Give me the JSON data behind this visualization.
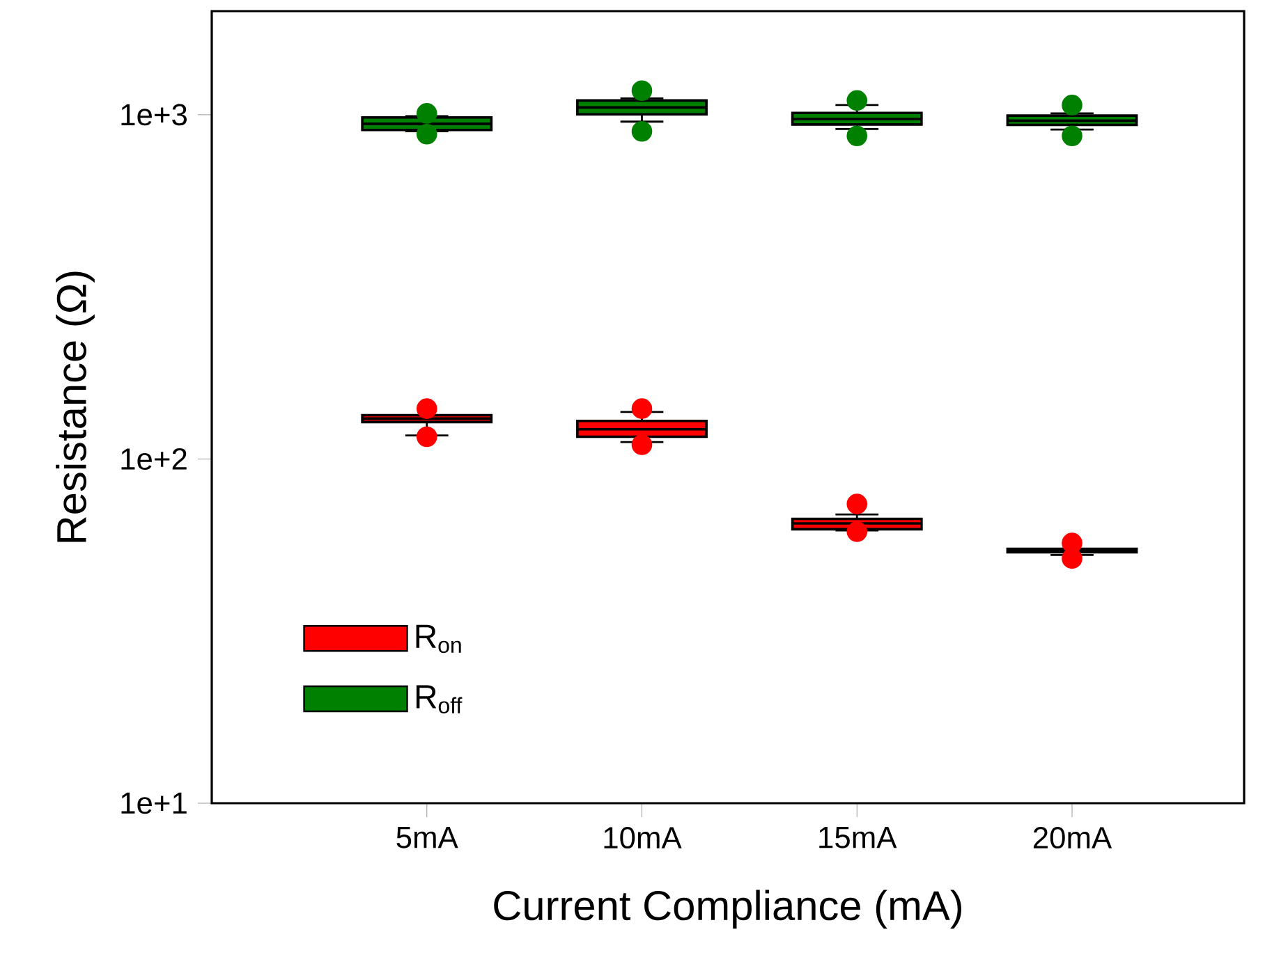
{
  "chart_data": {
    "type": "box",
    "xlabel": "Current Compliance (mA)",
    "ylabel": "Resistance (Ω)",
    "categories": [
      "5mA",
      "10mA",
      "15mA",
      "20mA"
    ],
    "log": true,
    "ylim": [
      10,
      2000
    ],
    "yticks": [
      {
        "value": 10,
        "label": "1e+1"
      },
      {
        "value": 100,
        "label": "1e+2"
      },
      {
        "value": 1000,
        "label": "1e+3"
      }
    ],
    "legend": "bottom left",
    "series": [
      {
        "name": "R$_{on}$",
        "color": "#ff0000",
        "boxes": [
          {
            "low": 117,
            "q1": 128,
            "median": 131,
            "q3": 134,
            "high": 134,
            "outliers": [
              116,
              140
            ]
          },
          {
            "low": 112,
            "q1": 116,
            "median": 122,
            "q3": 129,
            "high": 137,
            "outliers": [
              110,
              140
            ]
          },
          {
            "low": 62,
            "q1": 62.5,
            "median": 65,
            "q3": 67,
            "high": 69,
            "outliers": [
              61.5,
              74
            ]
          },
          {
            "low": 52.6,
            "q1": 53.6,
            "median": 54.2,
            "q3": 54.8,
            "high": 54.8,
            "outliers": [
              51.4,
              57
            ]
          }
        ]
      },
      {
        "name": "R$_{off}$",
        "color": "#008000",
        "boxes": [
          {
            "low": 895,
            "q1": 903,
            "median": 941,
            "q3": 982,
            "high": 991,
            "outliers": [
              878,
              1009
            ]
          },
          {
            "low": 955,
            "q1": 1003,
            "median": 1050,
            "q3": 1100,
            "high": 1115,
            "outliers": [
              895,
              1175
            ]
          },
          {
            "low": 909,
            "q1": 937,
            "median": 972,
            "q3": 1012,
            "high": 1067,
            "outliers": [
              868,
              1100
            ]
          },
          {
            "low": 906,
            "q1": 934,
            "median": 961,
            "q3": 994,
            "high": 1009,
            "outliers": [
              868,
              1067
            ]
          }
        ]
      }
    ]
  }
}
